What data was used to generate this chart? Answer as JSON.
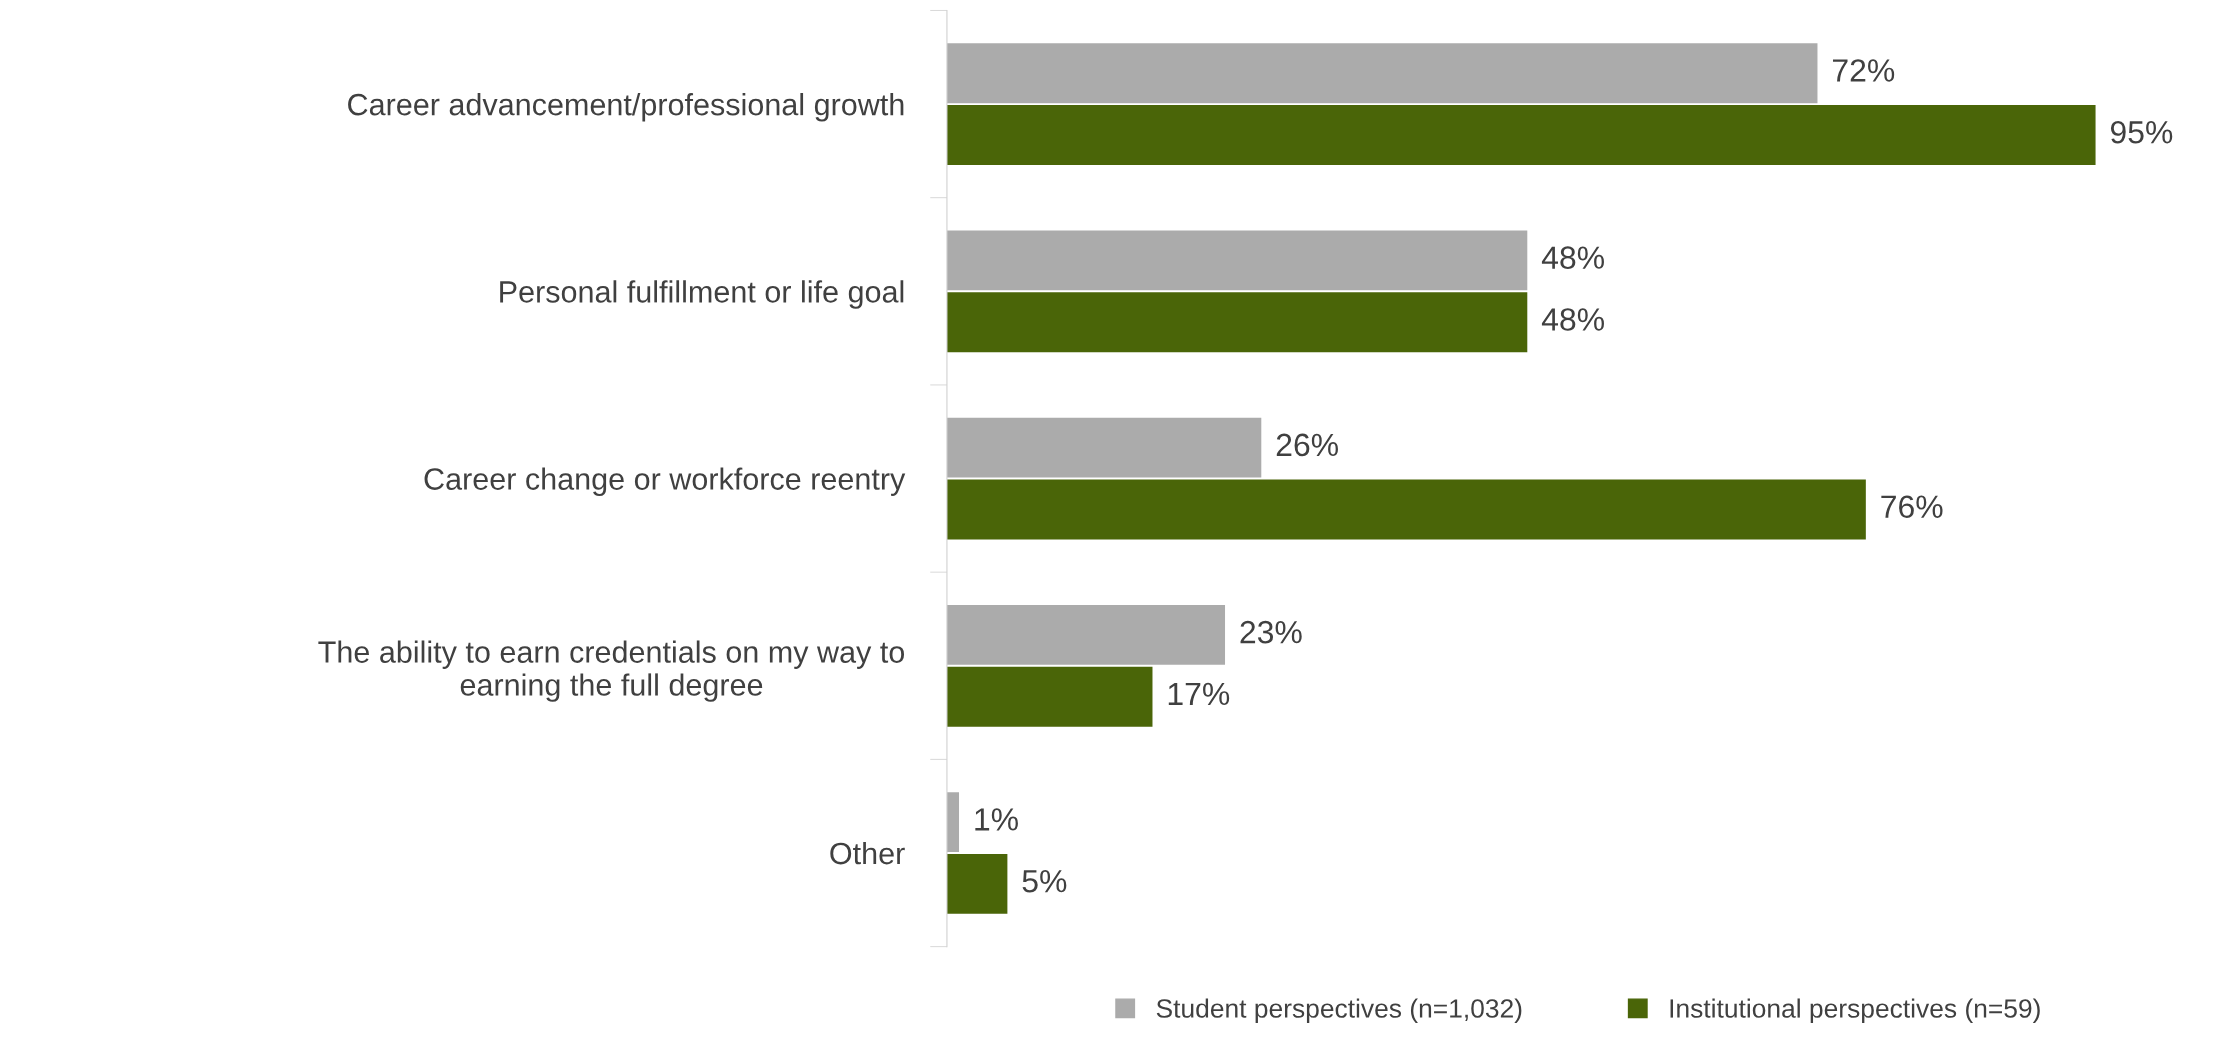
{
  "chart_data": {
    "type": "bar",
    "orientation": "horizontal",
    "categories": [
      "Career advancement/professional growth",
      "Personal fulfillment or life goal",
      "Career change or workforce reentry",
      "The ability to earn credentials on my way to\nearning the full degree",
      "Other"
    ],
    "series": [
      {
        "name": "Student perspectives (n=1,032)",
        "color": "#ababab",
        "values": [
          72,
          48,
          26,
          23,
          1
        ],
        "value_labels": [
          "72%",
          "48%",
          "26%",
          "23%",
          "1%"
        ]
      },
      {
        "name": "Institutional perspectives (n=59)",
        "color": "#4a6508",
        "values": [
          95,
          48,
          76,
          17,
          5
        ],
        "value_labels": [
          "95%",
          "48%",
          "76%",
          "17%",
          "5%"
        ]
      }
    ],
    "legend": "bottom",
    "grid": false
  }
}
